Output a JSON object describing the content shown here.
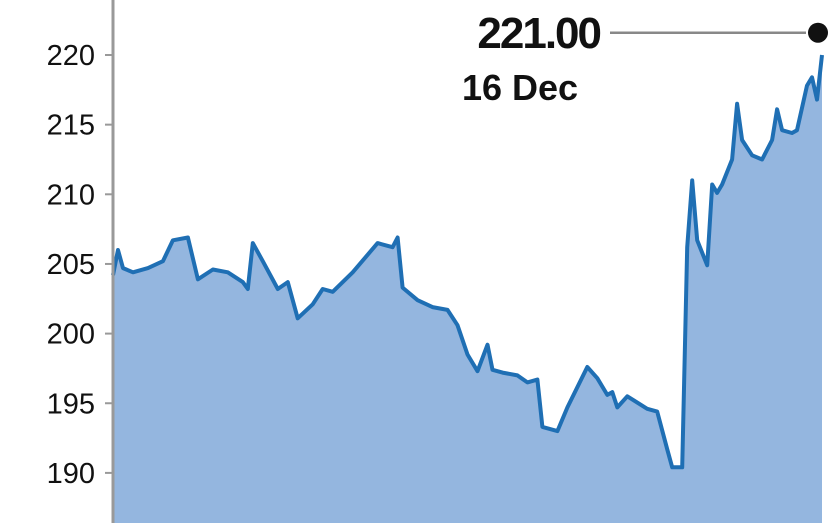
{
  "chart_data": {
    "type": "area",
    "title": "",
    "xlabel": "",
    "ylabel": "",
    "ylim": [
      187.5,
      221.8
    ],
    "xlim": [
      0,
      142
    ],
    "yticks": [
      190,
      195,
      200,
      205,
      210,
      215,
      220
    ],
    "grid": false,
    "colors": {
      "line": "#1f6fb4",
      "fill": "#94b6df",
      "axis": "#999999",
      "marker": "#111111",
      "leader": "#888888"
    },
    "points": [
      [
        0,
        204.2
      ],
      [
        1,
        206.0
      ],
      [
        2,
        204.7
      ],
      [
        4,
        204.4
      ],
      [
        7,
        204.7
      ],
      [
        10,
        205.2
      ],
      [
        12,
        206.7
      ],
      [
        15,
        206.9
      ],
      [
        17,
        203.9
      ],
      [
        20,
        204.6
      ],
      [
        23,
        204.4
      ],
      [
        26,
        203.7
      ],
      [
        27,
        203.2
      ],
      [
        28,
        206.5
      ],
      [
        30,
        205.2
      ],
      [
        33,
        203.2
      ],
      [
        35,
        203.7
      ],
      [
        37,
        201.1
      ],
      [
        40,
        202.1
      ],
      [
        42,
        203.2
      ],
      [
        44,
        203.0
      ],
      [
        48,
        204.4
      ],
      [
        53,
        206.5
      ],
      [
        56,
        206.2
      ],
      [
        57,
        206.9
      ],
      [
        58,
        203.3
      ],
      [
        61,
        202.4
      ],
      [
        64,
        201.9
      ],
      [
        67,
        201.7
      ],
      [
        69,
        200.6
      ],
      [
        71,
        198.5
      ],
      [
        73,
        197.3
      ],
      [
        75,
        199.2
      ],
      [
        76,
        197.4
      ],
      [
        78,
        197.2
      ],
      [
        81,
        197.0
      ],
      [
        83,
        196.5
      ],
      [
        85,
        196.7
      ],
      [
        86,
        193.3
      ],
      [
        89,
        193.0
      ],
      [
        91,
        194.7
      ],
      [
        95,
        197.6
      ],
      [
        97,
        196.8
      ],
      [
        99,
        195.6
      ],
      [
        100,
        195.8
      ],
      [
        101,
        194.7
      ],
      [
        103,
        195.5
      ],
      [
        107,
        194.6
      ],
      [
        109,
        194.4
      ],
      [
        111,
        191.7
      ],
      [
        112,
        190.4
      ],
      [
        114,
        190.4
      ],
      [
        115,
        206.2
      ],
      [
        116,
        211.0
      ],
      [
        117,
        206.7
      ],
      [
        119,
        204.9
      ],
      [
        120,
        210.7
      ],
      [
        121,
        210.1
      ],
      [
        122,
        210.7
      ],
      [
        124,
        212.5
      ],
      [
        125,
        216.5
      ],
      [
        126,
        213.9
      ],
      [
        128,
        212.8
      ],
      [
        130,
        212.5
      ],
      [
        132,
        213.9
      ],
      [
        133,
        216.1
      ],
      [
        134,
        214.6
      ],
      [
        136,
        214.4
      ],
      [
        137,
        214.6
      ],
      [
        139,
        217.8
      ],
      [
        140,
        218.4
      ],
      [
        141,
        216.8
      ],
      [
        142,
        220.0
      ]
    ],
    "annotation": {
      "value": "221.00",
      "date": "16 Dec",
      "y": 221.6
    }
  }
}
